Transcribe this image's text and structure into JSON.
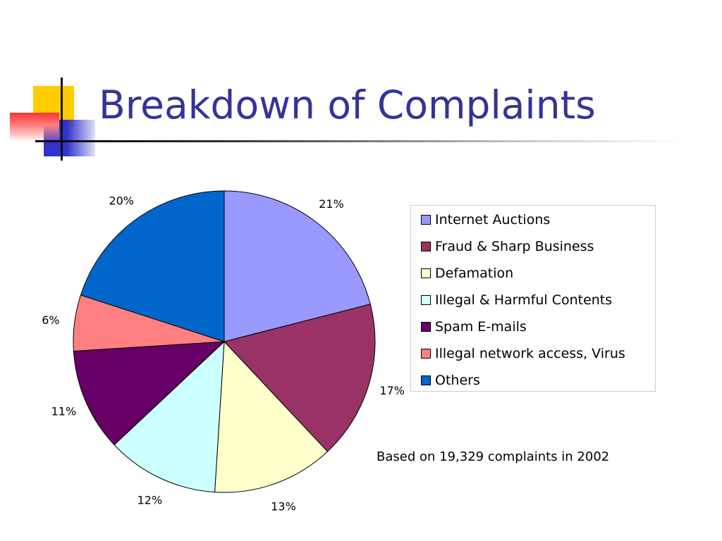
{
  "slide": {
    "title": "Breakdown of Complaints",
    "note": "Based on 19,329 complaints in 2002"
  },
  "chart_data": {
    "type": "pie",
    "title": "",
    "categories": [
      "Internet Auctions",
      "Fraud & Sharp Business",
      "Defamation",
      "Illegal & Harmful Contents",
      "Spam E-mails",
      "Illegal network access, Virus",
      "Others"
    ],
    "values": [
      21,
      17,
      13,
      12,
      11,
      6,
      20
    ],
    "labels": [
      "21%",
      "17%",
      "13%",
      "12%",
      "11%",
      "6%",
      "20%"
    ],
    "colors": [
      "#9999ff",
      "#993366",
      "#ffffcc",
      "#ccffff",
      "#660066",
      "#ff8080",
      "#0066cc"
    ],
    "start": "12 o'clock",
    "direction": "clockwise",
    "legend": "right"
  }
}
